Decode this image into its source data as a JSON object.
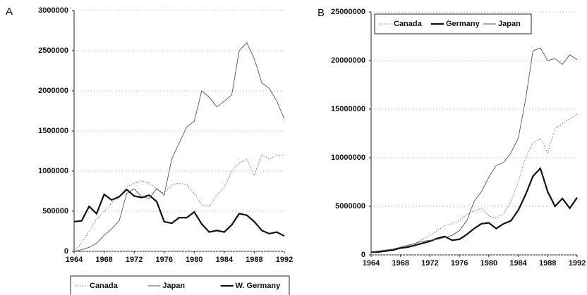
{
  "chart_data": [
    {
      "type": "line",
      "panel": "A",
      "x": [
        1964,
        1965,
        1966,
        1967,
        1968,
        1969,
        1970,
        1971,
        1972,
        1973,
        1974,
        1975,
        1976,
        1977,
        1978,
        1979,
        1980,
        1981,
        1982,
        1983,
        1984,
        1985,
        1986,
        1987,
        1988,
        1989,
        1990,
        1991,
        1992
      ],
      "xlim": [
        1964,
        1992
      ],
      "xticks": [
        1964,
        1968,
        1972,
        1976,
        1980,
        1984,
        1988,
        1992
      ],
      "ylim": [
        0,
        3000000
      ],
      "yticks": [
        0,
        500000,
        1000000,
        1500000,
        2000000,
        2500000,
        3000000
      ],
      "grid": true,
      "legend": "bottom",
      "series": [
        {
          "name": "Canada",
          "color": "#777777",
          "style": "dotted",
          "values": [
            0,
            100000,
            250000,
            400000,
            500000,
            600000,
            680000,
            800000,
            850000,
            880000,
            850000,
            780000,
            720000,
            830000,
            850000,
            830000,
            720000,
            580000,
            560000,
            700000,
            800000,
            1000000,
            1100000,
            1150000,
            950000,
            1200000,
            1150000,
            1200000,
            1200000
          ]
        },
        {
          "name": "Japan",
          "color": "#555555",
          "style": "thin",
          "values": [
            0,
            20000,
            50000,
            100000,
            200000,
            280000,
            380000,
            720000,
            780000,
            680000,
            660000,
            780000,
            700000,
            1150000,
            1350000,
            1550000,
            1620000,
            2000000,
            1920000,
            1800000,
            1870000,
            1950000,
            2500000,
            2600000,
            2400000,
            2100000,
            2030000,
            1870000,
            1650000
          ]
        },
        {
          "name": "W. Germany",
          "color": "#111111",
          "style": "thick",
          "values": [
            370000,
            380000,
            560000,
            470000,
            710000,
            640000,
            680000,
            770000,
            690000,
            670000,
            700000,
            620000,
            370000,
            350000,
            420000,
            420000,
            490000,
            340000,
            240000,
            260000,
            240000,
            330000,
            470000,
            450000,
            370000,
            260000,
            220000,
            240000,
            190000
          ]
        }
      ]
    },
    {
      "type": "line",
      "panel": "B",
      "x": [
        1964,
        1965,
        1966,
        1967,
        1968,
        1969,
        1970,
        1971,
        1972,
        1973,
        1974,
        1975,
        1976,
        1977,
        1978,
        1979,
        1980,
        1981,
        1982,
        1983,
        1984,
        1985,
        1986,
        1987,
        1988,
        1989,
        1990,
        1991,
        1992
      ],
      "xlim": [
        1964,
        1992
      ],
      "xticks": [
        1964,
        1968,
        1972,
        1976,
        1980,
        1984,
        1988,
        1992
      ],
      "ylim": [
        0,
        25000000
      ],
      "yticks": [
        0,
        5000000,
        10000000,
        15000000,
        20000000,
        25000000
      ],
      "grid": true,
      "legend": "top-left",
      "series": [
        {
          "name": "Canada",
          "color": "#777777",
          "style": "dotted",
          "values": [
            200000,
            300000,
            400000,
            500000,
            700000,
            900000,
            1200000,
            1600000,
            2000000,
            2500000,
            3000000,
            3200000,
            3500000,
            4200000,
            4500000,
            4800000,
            4000000,
            3800000,
            4200000,
            5500000,
            7500000,
            10000000,
            11500000,
            12000000,
            10500000,
            13000000,
            13500000,
            14000000,
            14500000
          ]
        },
        {
          "name": "Germany",
          "color": "#111111",
          "style": "thick",
          "values": [
            300000,
            300000,
            400000,
            500000,
            700000,
            800000,
            1000000,
            1200000,
            1400000,
            1700000,
            1900000,
            1500000,
            1600000,
            2100000,
            2700000,
            3200000,
            3300000,
            2700000,
            3200000,
            3500000,
            4600000,
            6200000,
            8100000,
            8900000,
            6500000,
            5000000,
            5800000,
            4800000,
            5900000
          ]
        },
        {
          "name": "Japan",
          "color": "#555555",
          "style": "thin",
          "values": [
            300000,
            400000,
            500000,
            600000,
            800000,
            1000000,
            1200000,
            1400000,
            1500000,
            1600000,
            1800000,
            2000000,
            2500000,
            3500000,
            5500000,
            6500000,
            8000000,
            9200000,
            9500000,
            10500000,
            12000000,
            16000000,
            21000000,
            21300000,
            20000000,
            20200000,
            19600000,
            20600000,
            20100000
          ]
        }
      ]
    }
  ]
}
